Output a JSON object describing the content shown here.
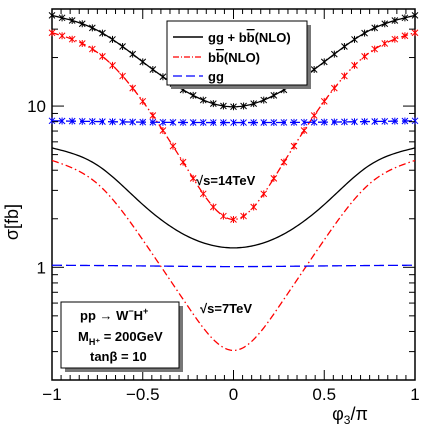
{
  "chart_data": {
    "type": "line",
    "xlabel": "φ3/π",
    "ylabel": "σ[fb]",
    "xlim": [
      -1,
      1
    ],
    "ylim": [
      0.2,
      40
    ],
    "yscale": "log",
    "x_ticks": [
      "−1",
      "−0.5",
      "0",
      "0.5",
      "1"
    ],
    "y_ticks": [
      "1",
      "10"
    ],
    "grid": false,
    "legend_position": "top-center",
    "legend": [
      {
        "label": "gg + bb̄(NLO)",
        "color": "#000000",
        "style": "solid"
      },
      {
        "label": "bb̄(NLO)",
        "color": "#ff0000",
        "style": "dash-dot"
      },
      {
        "label": "gg",
        "color": "#0000ff",
        "style": "dashed"
      }
    ],
    "annotations": [
      {
        "text": "√s=14TeV"
      },
      {
        "text": "√s=7TeV"
      }
    ],
    "info_box": [
      "pp → W⁻H⁺",
      "M_H⁺ = 200GeV",
      "tanβ = 10"
    ],
    "series": [
      {
        "name": "gg + bb̄(NLO)",
        "energy": "14TeV",
        "color": "#000000",
        "style": "solid",
        "markers": true,
        "x": [
          -1,
          -0.75,
          -0.5,
          -0.25,
          0,
          0.25,
          0.5,
          0.75,
          1
        ],
        "y": [
          36.5,
          29.5,
          18.8,
          12.1,
          9.9,
          12.1,
          18.8,
          29.5,
          36.5
        ]
      },
      {
        "name": "bb̄(NLO)",
        "energy": "14TeV",
        "color": "#ff0000",
        "style": "dash-dot",
        "markers": true,
        "x": [
          -1,
          -0.75,
          -0.5,
          -0.25,
          0,
          0.25,
          0.5,
          0.75,
          1
        ],
        "y": [
          28.5,
          21.5,
          10.7,
          4.0,
          1.98,
          4.0,
          10.7,
          21.5,
          28.5
        ]
      },
      {
        "name": "gg",
        "energy": "14TeV",
        "color": "#0000ff",
        "style": "dashed",
        "markers": true,
        "x": [
          -1,
          -0.5,
          0,
          0.5,
          1
        ],
        "y": [
          8.1,
          7.95,
          7.9,
          7.95,
          8.1
        ]
      },
      {
        "name": "gg + bb̄(NLO)",
        "energy": "7TeV",
        "color": "#000000",
        "style": "solid",
        "markers": false,
        "x": [
          -1,
          -0.75,
          -0.5,
          -0.25,
          0,
          0.25,
          0.5,
          0.75,
          1
        ],
        "y": [
          5.5,
          4.3,
          2.45,
          1.55,
          1.32,
          1.55,
          2.45,
          4.3,
          5.5
        ]
      },
      {
        "name": "bb̄(NLO)",
        "energy": "7TeV",
        "color": "#ff0000",
        "style": "dash-dot",
        "markers": false,
        "x": [
          -1,
          -0.75,
          -0.5,
          -0.25,
          0,
          0.25,
          0.5,
          0.75,
          1
        ],
        "y": [
          4.6,
          3.3,
          1.48,
          0.57,
          0.305,
          0.57,
          1.48,
          3.3,
          4.6
        ]
      },
      {
        "name": "gg",
        "energy": "7TeV",
        "color": "#0000ff",
        "style": "dashed",
        "markers": false,
        "x": [
          -1,
          -0.5,
          0,
          0.5,
          1
        ],
        "y": [
          1.03,
          1.02,
          1.01,
          1.02,
          1.03
        ]
      }
    ]
  }
}
